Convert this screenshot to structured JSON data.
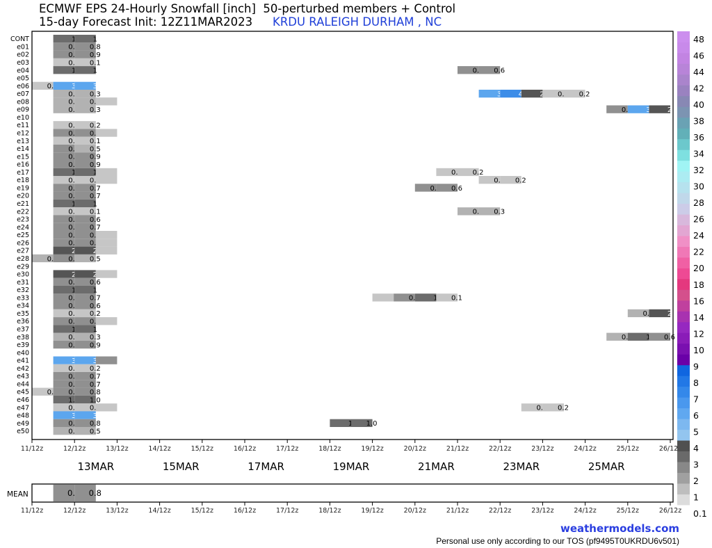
{
  "header": {
    "title_line1": "ECMWF EPS 24-Hourly Snowfall [inch]  50-perturbed members + Control",
    "title_line2": "15-day Forecast Init: 12Z11MAR2023",
    "station": "KRDU RALEIGH DURHAM , NC"
  },
  "footer": {
    "brand": "weathermodels.com",
    "tos": "Personal use only according to our TOS (pf9495T0UKRDU6v501)"
  },
  "chart_data": {
    "type": "heatmap",
    "x_tick_labels": [
      "11/12z",
      "12/12z",
      "13/12z",
      "14/12z",
      "15/12z",
      "16/12z",
      "17/12z",
      "18/12z",
      "19/12z",
      "20/12z",
      "21/12z",
      "22/12z",
      "23/12z",
      "24/12z",
      "25/12z",
      "26/12z"
    ],
    "x_date_labels": [
      {
        "label": "13MAR",
        "day_index": 1.5
      },
      {
        "label": "15MAR",
        "day_index": 3.5
      },
      {
        "label": "17MAR",
        "day_index": 5.5
      },
      {
        "label": "19MAR",
        "day_index": 7.5
      },
      {
        "label": "21MAR",
        "day_index": 9.5
      },
      {
        "label": "23MAR",
        "day_index": 11.5
      },
      {
        "label": "25MAR",
        "day_index": 13.5
      }
    ],
    "xlim_days": [
      0,
      15
    ],
    "members": [
      "CONT",
      "e01",
      "e02",
      "e03",
      "e04",
      "e05",
      "e06",
      "e07",
      "e08",
      "e09",
      "e10",
      "e11",
      "e12",
      "e13",
      "e14",
      "e15",
      "e16",
      "e17",
      "e18",
      "e19",
      "e20",
      "e21",
      "e22",
      "e23",
      "e24",
      "e25",
      "e26",
      "e27",
      "e28",
      "e29",
      "e30",
      "e31",
      "e32",
      "e33",
      "e34",
      "e35",
      "e36",
      "e37",
      "e38",
      "e39",
      "e40",
      "e41",
      "e42",
      "e43",
      "e44",
      "e45",
      "e46",
      "e47",
      "e48",
      "e49",
      "e50"
    ],
    "snowfall": {
      "CONT": [
        [
          1,
          1,
          "1"
        ],
        [
          1.5,
          1,
          "1"
        ]
      ],
      "e01": [
        [
          1,
          0.8,
          "0.8"
        ],
        [
          1.5,
          0.8,
          "0.8"
        ]
      ],
      "e02": [
        [
          1,
          0.9,
          "0.9"
        ],
        [
          1.5,
          0.9,
          "0.9"
        ]
      ],
      "e03": [
        [
          1,
          0.1,
          "0.1"
        ],
        [
          1.5,
          0.1,
          "0.1"
        ]
      ],
      "e04": [
        [
          1,
          1,
          "1"
        ],
        [
          1.5,
          1,
          "1"
        ],
        [
          10.5,
          0.6,
          "0.6"
        ],
        [
          11,
          0.6,
          "0.6"
        ]
      ],
      "e06": [
        [
          0.5,
          0.2,
          "0.2"
        ],
        [
          1,
          3,
          "3"
        ],
        [
          1.5,
          3,
          "3"
        ]
      ],
      "e07": [
        [
          1,
          0.3,
          "0.3"
        ],
        [
          1.5,
          0.3,
          "0.3"
        ],
        [
          11,
          3,
          "3"
        ],
        [
          11.5,
          4,
          "4"
        ],
        [
          12,
          2,
          "2"
        ],
        [
          12.5,
          0.2,
          "0.2"
        ],
        [
          13,
          0.2,
          "0.2"
        ]
      ],
      "e08": [
        [
          1,
          0.3,
          "0.3"
        ],
        [
          1.5,
          0.3,
          "0.3"
        ],
        [
          2,
          0.2,
          ""
        ]
      ],
      "e09": [
        [
          1,
          0.3,
          "0.3"
        ],
        [
          1.5,
          0.3,
          "0.3"
        ],
        [
          14,
          0.7,
          "0.7"
        ],
        [
          14.5,
          3,
          "3"
        ],
        [
          15,
          2,
          "2"
        ]
      ],
      "e11": [
        [
          1,
          0.2,
          "0.2"
        ],
        [
          1.5,
          0.2,
          "0.2"
        ]
      ],
      "e12": [
        [
          1,
          0.7,
          "0.7"
        ],
        [
          1.5,
          0.7,
          "0.7"
        ],
        [
          2,
          0.2,
          ""
        ]
      ],
      "e13": [
        [
          1,
          0.1,
          "0.1"
        ],
        [
          1.5,
          0.1,
          "0.1"
        ]
      ],
      "e14": [
        [
          1,
          0.6,
          "0.6"
        ],
        [
          1.5,
          0.5,
          "0.5"
        ]
      ],
      "e15": [
        [
          1,
          0.9,
          "0.9"
        ],
        [
          1.5,
          0.9,
          "0.9"
        ]
      ],
      "e16": [
        [
          1,
          0.9,
          "0.9"
        ],
        [
          1.5,
          0.9,
          "0.9"
        ]
      ],
      "e17": [
        [
          1,
          1,
          "1"
        ],
        [
          1.5,
          1,
          "1"
        ],
        [
          2,
          0.2,
          ""
        ],
        [
          10,
          0.1,
          "0.1"
        ],
        [
          10.5,
          0.2,
          "0.2"
        ]
      ],
      "e18": [
        [
          1,
          0.1,
          "0.1"
        ],
        [
          1.5,
          0.1,
          "0.1"
        ],
        [
          2,
          0.2,
          ""
        ],
        [
          11,
          0.2,
          "0.2"
        ],
        [
          11.5,
          0.2,
          "0.2"
        ]
      ],
      "e19": [
        [
          1,
          0.7,
          "0.7"
        ],
        [
          1.5,
          0.7,
          "0.7"
        ],
        [
          9.5,
          0.7,
          "0.7"
        ],
        [
          10,
          0.6,
          "0.6"
        ]
      ],
      "e20": [
        [
          1,
          0.7,
          "0.7"
        ],
        [
          1.5,
          0.7,
          "0.7"
        ]
      ],
      "e21": [
        [
          1,
          1,
          "1"
        ],
        [
          1.5,
          1,
          "1"
        ]
      ],
      "e22": [
        [
          1,
          0.1,
          "0.1"
        ],
        [
          1.5,
          0.1,
          "0.1"
        ],
        [
          10.5,
          0.3,
          "0.3"
        ],
        [
          11,
          0.3,
          "0.3"
        ]
      ],
      "e23": [
        [
          1,
          0.6,
          "0.6"
        ],
        [
          1.5,
          0.6,
          "0.6"
        ]
      ],
      "e24": [
        [
          1,
          0.7,
          "0.7"
        ],
        [
          1.5,
          0.7,
          "0.7"
        ]
      ],
      "e25": [
        [
          1,
          0.6,
          "0.6"
        ],
        [
          1.5,
          0.6,
          "0.6"
        ],
        [
          2,
          0.2,
          ""
        ]
      ],
      "e26": [
        [
          1,
          0.6,
          "0.6"
        ],
        [
          1.5,
          0.6,
          "0.6"
        ],
        [
          2,
          0.2,
          ""
        ]
      ],
      "e27": [
        [
          1,
          2,
          "2"
        ],
        [
          1.5,
          2,
          "2"
        ],
        [
          2,
          0.2,
          ""
        ]
      ],
      "e28": [
        [
          0.5,
          0.3,
          "0.3"
        ],
        [
          1,
          0.8,
          "0.8"
        ],
        [
          1.5,
          0.5,
          "0.5"
        ]
      ],
      "e30": [
        [
          1,
          2,
          "2"
        ],
        [
          1.5,
          2,
          "2"
        ],
        [
          2,
          0.2,
          ""
        ]
      ],
      "e31": [
        [
          1,
          0.6,
          "0.6"
        ],
        [
          1.5,
          0.6,
          "0.6"
        ]
      ],
      "e32": [
        [
          1,
          1,
          "1"
        ],
        [
          1.5,
          1,
          "1"
        ]
      ],
      "e33": [
        [
          1,
          0.7,
          "0.7"
        ],
        [
          1.5,
          0.7,
          "0.7"
        ],
        [
          8.5,
          0.2,
          ""
        ],
        [
          9,
          0.9,
          "0.9"
        ],
        [
          9.5,
          1,
          "1"
        ],
        [
          10,
          0.1,
          "0.1"
        ]
      ],
      "e34": [
        [
          1,
          0.6,
          "0.6"
        ],
        [
          1.5,
          0.6,
          "0.6"
        ]
      ],
      "e35": [
        [
          1,
          0.2,
          "0.2"
        ],
        [
          1.5,
          0.2,
          "0.2"
        ],
        [
          14.5,
          0.4,
          "0.4"
        ],
        [
          15,
          2,
          "2"
        ]
      ],
      "e36": [
        [
          1,
          0.9,
          "0.9"
        ],
        [
          1.5,
          0.9,
          "0.9"
        ],
        [
          2,
          0.2,
          ""
        ]
      ],
      "e37": [
        [
          1,
          1,
          "1"
        ],
        [
          1.5,
          1,
          "1"
        ]
      ],
      "e38": [
        [
          1,
          0.3,
          "0.3"
        ],
        [
          1.5,
          0.3,
          "0.3"
        ],
        [
          14,
          0.4,
          "0.4"
        ],
        [
          14.5,
          1,
          "1"
        ],
        [
          15,
          0.6,
          "0.6"
        ]
      ],
      "e39": [
        [
          1,
          0.9,
          "0.9"
        ],
        [
          1.5,
          0.9,
          "0.9"
        ]
      ],
      "e41": [
        [
          1,
          3,
          "3"
        ],
        [
          1.5,
          3,
          "3"
        ],
        [
          2,
          0.6,
          ""
        ]
      ],
      "e42": [
        [
          1,
          0.2,
          "0.2"
        ],
        [
          1.5,
          0.2,
          "0.2"
        ]
      ],
      "e43": [
        [
          1,
          0.7,
          "0.7"
        ],
        [
          1.5,
          0.7,
          "0.7"
        ]
      ],
      "e44": [
        [
          1,
          0.8,
          "0.8"
        ],
        [
          1.5,
          0.7,
          "0.7"
        ]
      ],
      "e45": [
        [
          0.5,
          0.2,
          "0.2"
        ],
        [
          1,
          0.9,
          "0.9"
        ],
        [
          1.5,
          0.8,
          "0.8"
        ]
      ],
      "e46": [
        [
          1,
          1.0,
          "1.0"
        ],
        [
          1.5,
          1.0,
          "1.0"
        ]
      ],
      "e47": [
        [
          1,
          0.2,
          "0.2"
        ],
        [
          1.5,
          0.2,
          "0.2"
        ],
        [
          2,
          0.2,
          ""
        ],
        [
          12,
          0.2,
          "0.2"
        ],
        [
          12.5,
          0.2,
          "0.2"
        ]
      ],
      "e48": [
        [
          1,
          3,
          "3"
        ],
        [
          1.5,
          3,
          "3"
        ]
      ],
      "e49": [
        [
          1,
          0.8,
          "0.8"
        ],
        [
          1.5,
          0.8,
          "0.8"
        ],
        [
          7.5,
          1,
          "1"
        ],
        [
          8,
          1.0,
          "1.0"
        ]
      ],
      "e50": [
        [
          1,
          0.5,
          "0.5"
        ],
        [
          1.5,
          0.5,
          "0.5"
        ]
      ]
    },
    "mean_label": "MEAN",
    "mean": [
      [
        1,
        0.8,
        "0.8"
      ],
      [
        1.5,
        0.8,
        "0.8"
      ]
    ],
    "colorbar_labels": [
      "0.1",
      "1",
      "2",
      "3",
      "4",
      "5",
      "6",
      "7",
      "8",
      "9",
      "10",
      "12",
      "14",
      "16",
      "18",
      "20",
      "22",
      "24",
      "26",
      "28",
      "30",
      "32",
      "34",
      "36",
      "38",
      "40",
      "42",
      "44",
      "46",
      "48"
    ],
    "colorbar_colors": [
      "#dcdcdc",
      "#bebebe",
      "#a0a0a0",
      "#888888",
      "#6a6a6a",
      "#505050",
      "#93c5ef",
      "#7db8f0",
      "#60a8f0",
      "#4a98ee",
      "#3488ea",
      "#2278e6",
      "#1066e0",
      "#6a00a8",
      "#7a10b0",
      "#8a1cb8",
      "#9628c0",
      "#a832b0",
      "#c0409e",
      "#d4508c",
      "#e4387e",
      "#ee4a94",
      "#f060a4",
      "#f078b6",
      "#f090c6",
      "#e2a6d2",
      "#d8b8dc",
      "#cccce8",
      "#c0d8ea",
      "#b6e2ee",
      "#acecf2",
      "#a0f4f4",
      "#7ee0e0",
      "#6cc8cc",
      "#62b0b8",
      "#6aa2b4",
      "#7c94b2",
      "#8888b4",
      "#9a82c0",
      "#aa84cc",
      "#b884d8",
      "#c284e2",
      "#c88aea",
      "#cc8eee"
    ]
  }
}
